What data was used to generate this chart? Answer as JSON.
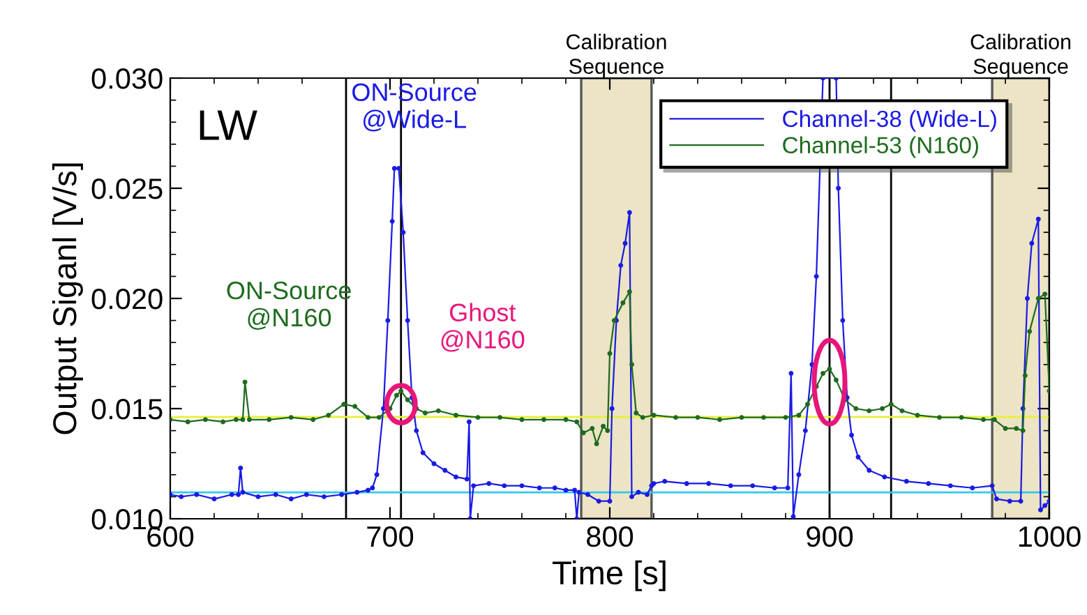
{
  "chart_data": {
    "type": "line",
    "xlabel": "Time [s]",
    "ylabel": "Output Siganl [V/s]",
    "xlim": [
      600,
      1000
    ],
    "xticks": [
      600,
      700,
      800,
      900,
      1000
    ],
    "ylim": [
      0.01,
      0.03
    ],
    "yticks": [
      {
        "value": 0.01,
        "label": "0.010"
      },
      {
        "value": 0.015,
        "label": "0.015"
      },
      {
        "value": 0.02,
        "label": "0.020"
      },
      {
        "value": 0.025,
        "label": "0.025"
      },
      {
        "value": 0.03,
        "label": "0.030"
      }
    ],
    "grid": false,
    "legend": "top right",
    "marker": "circle",
    "line_style": "solid",
    "series": [
      {
        "name": "Channel-38 (Wide-L)",
        "color": "#1a1ae6",
        "x": [
          600,
          605,
          612,
          620,
          628,
          631,
          632,
          633,
          640,
          648,
          655,
          662,
          670,
          678,
          685,
          690,
          692,
          694,
          697,
          699,
          701,
          702,
          704,
          706,
          708,
          710,
          712,
          715,
          720,
          725,
          730,
          735,
          736,
          736.5,
          738,
          745,
          752,
          760,
          768,
          775,
          780,
          784,
          785,
          786,
          790,
          795,
          800,
          801,
          803,
          805,
          807,
          809,
          810,
          813,
          817,
          819,
          820,
          825,
          835,
          845,
          855,
          865,
          875,
          881,
          882.5,
          883.5,
          886,
          889,
          892,
          894,
          897,
          903,
          904,
          906,
          908,
          910,
          913,
          918,
          925,
          935,
          945,
          955,
          965,
          974,
          976,
          982,
          987,
          988,
          990,
          992,
          995,
          996,
          998,
          1000
        ],
        "values": [
          0.0111,
          0.011,
          0.0111,
          0.0109,
          0.0111,
          0.0111,
          0.0123,
          0.0112,
          0.011,
          0.0111,
          0.0109,
          0.0111,
          0.011,
          0.0111,
          0.0112,
          0.0113,
          0.0114,
          0.012,
          0.015,
          0.019,
          0.0235,
          0.0259,
          0.0259,
          0.023,
          0.019,
          0.0155,
          0.014,
          0.013,
          0.0125,
          0.0122,
          0.0119,
          0.0118,
          0.0144,
          0.01,
          0.0115,
          0.0116,
          0.0115,
          0.0115,
          0.0114,
          0.0114,
          0.0113,
          0.0113,
          0.01,
          0.0112,
          0.0111,
          0.0108,
          0.0108,
          0.015,
          0.019,
          0.0215,
          0.0225,
          0.0239,
          0.011,
          0.0112,
          0.0111,
          0.0115,
          0.0116,
          0.0117,
          0.0116,
          0.0116,
          0.0115,
          0.0115,
          0.0114,
          0.0114,
          0.0166,
          0.0101,
          0.012,
          0.014,
          0.017,
          0.021,
          0.03,
          0.03,
          0.025,
          0.019,
          0.0155,
          0.0138,
          0.0128,
          0.0122,
          0.0119,
          0.0117,
          0.0116,
          0.0115,
          0.0114,
          0.0115,
          0.0109,
          0.0108,
          0.0108,
          0.015,
          0.02,
          0.0225,
          0.0236,
          0.0104,
          0.0106,
          0.0108
        ]
      },
      {
        "name": "Channel-53 (N160)",
        "color": "#1e6b1e",
        "x": [
          600,
          608,
          616,
          624,
          630,
          633,
          634,
          636,
          645,
          655,
          665,
          672,
          679,
          684,
          690,
          695,
          700,
          703,
          705,
          708,
          712,
          716,
          722,
          730,
          740,
          750,
          760,
          770,
          780,
          785,
          788,
          792,
          794,
          797,
          799,
          800,
          802,
          806,
          809,
          810,
          812,
          815,
          820,
          830,
          840,
          850,
          860,
          870,
          880,
          886,
          890,
          894,
          897,
          900,
          903,
          907,
          912,
          918,
          924,
          928,
          933,
          940,
          950,
          960,
          970,
          975,
          980,
          985,
          988,
          989,
          991,
          995,
          998,
          1000
        ],
        "values": [
          0.0145,
          0.0144,
          0.0145,
          0.0144,
          0.0145,
          0.0145,
          0.0162,
          0.0145,
          0.0145,
          0.0146,
          0.0145,
          0.0147,
          0.0152,
          0.0151,
          0.0146,
          0.0146,
          0.015,
          0.0156,
          0.0158,
          0.0154,
          0.015,
          0.0148,
          0.0149,
          0.0147,
          0.0146,
          0.0146,
          0.0145,
          0.0145,
          0.0145,
          0.0144,
          0.0139,
          0.0141,
          0.0134,
          0.0142,
          0.014,
          0.0175,
          0.019,
          0.0198,
          0.0203,
          0.017,
          0.0148,
          0.0146,
          0.0147,
          0.0146,
          0.0146,
          0.0145,
          0.0146,
          0.0146,
          0.0146,
          0.0147,
          0.0152,
          0.016,
          0.0166,
          0.0168,
          0.0163,
          0.0154,
          0.015,
          0.0149,
          0.015,
          0.0152,
          0.0149,
          0.0147,
          0.0146,
          0.0146,
          0.0145,
          0.0145,
          0.0141,
          0.0141,
          0.014,
          0.0165,
          0.0185,
          0.02,
          0.0202,
          0.0158
        ]
      }
    ],
    "ref_lines": [
      {
        "axis": "x",
        "value": 680,
        "color": "#000000"
      },
      {
        "axis": "x",
        "value": 705,
        "color": "#000000"
      },
      {
        "axis": "x",
        "value": 900,
        "color": "#000000"
      },
      {
        "axis": "x",
        "value": 928,
        "color": "#000000"
      },
      {
        "axis": "y",
        "value": 0.01462,
        "color": "#e8f040"
      },
      {
        "axis": "y",
        "value": 0.0112,
        "color": "#30c8f0"
      }
    ],
    "bands": [
      {
        "axis": "x",
        "from": 787,
        "to": 819,
        "label": "Calibration\nSequence",
        "color": "#ece4c4"
      },
      {
        "axis": "x",
        "from": 974,
        "to": 1000,
        "label": "Calibration\nSequence",
        "color": "#ece4c4"
      }
    ],
    "annotations": [
      "LW",
      {
        "text": "ON-Source\n@Wide-L",
        "x": 703,
        "y": 0.0259
      },
      {
        "text": "ON-Source\n@N160",
        "x": 679,
        "y": 0.0152
      },
      {
        "text": "Ghost\n@N160",
        "x": 705,
        "y": 0.0152
      }
    ]
  }
}
